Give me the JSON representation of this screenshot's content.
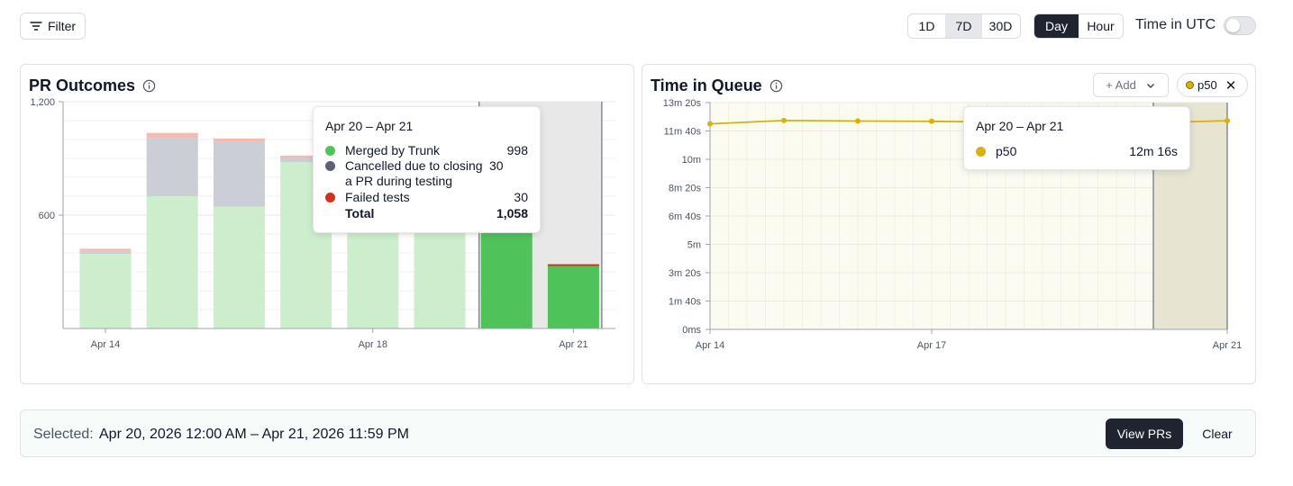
{
  "toolbar": {
    "filter_label": "Filter",
    "range_options": [
      "1D",
      "7D",
      "30D"
    ],
    "range_selected": "7D",
    "granularity_options": [
      "Day",
      "Hour"
    ],
    "granularity_selected": "Day",
    "utc_label": "Time in UTC",
    "utc_enabled": false
  },
  "pr_outcomes": {
    "title": "PR Outcomes",
    "tooltip": {
      "title": "Apr 20 – Apr 21",
      "rows": [
        {
          "label": "Merged by Trunk",
          "value": "998",
          "color": "#4fc35a"
        },
        {
          "label": "Cancelled due to closing a PR during testing",
          "value": "30",
          "color": "#5b6270"
        },
        {
          "label": "Failed tests",
          "value": "30",
          "color": "#d0321c"
        }
      ],
      "total_label": "Total",
      "total_value": "1,058"
    },
    "chart_data": {
      "type": "bar",
      "stacked": true,
      "categories": [
        "Apr 14",
        "Apr 15",
        "Apr 16",
        "Apr 17",
        "Apr 18",
        "Apr 19",
        "Apr 20",
        "Apr 21"
      ],
      "x_tick_labels": [
        "Apr 14",
        "Apr 18",
        "Apr 21"
      ],
      "y_tick_labels": [
        "1,200",
        "600"
      ],
      "ylim": [
        0,
        1200
      ],
      "series": [
        {
          "name": "Merged by Trunk",
          "color": "#4fc35a",
          "values": [
            395,
            700,
            645,
            880,
            920,
            930,
            998,
            330
          ]
        },
        {
          "name": "Cancelled due to closing a PR during testing",
          "color": "#5b6270",
          "values": [
            15,
            310,
            345,
            20,
            18,
            16,
            30,
            0
          ]
        },
        {
          "name": "Failed tests",
          "color": "#d0321c",
          "values": [
            12,
            25,
            15,
            15,
            10,
            10,
            30,
            10
          ]
        }
      ],
      "selected_categories": [
        "Apr 20",
        "Apr 21"
      ]
    }
  },
  "time_in_queue": {
    "title": "Time in Queue",
    "add_label": "+ Add",
    "chip_label": "p50",
    "tooltip": {
      "title": "Apr 20 – Apr 21",
      "rows": [
        {
          "label": "p50",
          "value": "12m 16s",
          "color": "#d6b20c"
        }
      ]
    },
    "chart_data": {
      "type": "line",
      "x": [
        "Apr 14",
        "Apr 15",
        "Apr 16",
        "Apr 17",
        "Apr 18",
        "Apr 19",
        "Apr 20",
        "Apr 21"
      ],
      "x_tick_labels": [
        "Apr 14",
        "Apr 17",
        "Apr 21"
      ],
      "y_tick_labels": [
        "0ms",
        "1m 40s",
        "3m 20s",
        "5m",
        "6m 40s",
        "8m 20s",
        "10m",
        "11m 40s",
        "13m 20s"
      ],
      "ylim_seconds": [
        0,
        800
      ],
      "series": [
        {
          "name": "p50",
          "color": "#d6b20c",
          "values_seconds": [
            725,
            737,
            735,
            734,
            731,
            730,
            729,
            736
          ]
        }
      ],
      "selected_range": [
        "Apr 20",
        "Apr 21"
      ]
    }
  },
  "selection": {
    "label": "Selected:",
    "value": "Apr 20, 2026 12:00 AM – Apr 21, 2026 11:59 PM",
    "view_prs_label": "View PRs",
    "clear_label": "Clear"
  }
}
